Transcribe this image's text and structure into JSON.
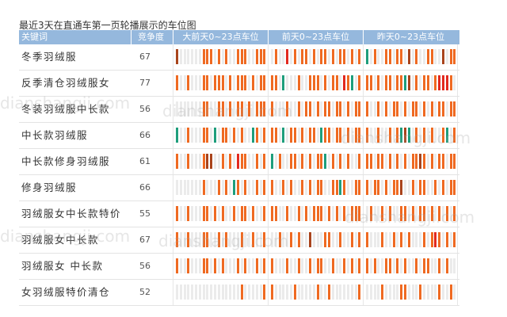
{
  "watermark": "dianshangji.com",
  "chart_data": {
    "type": "table",
    "title": "最近3天在直通车第一页轮播展示的车位图",
    "columns": [
      "关键词",
      "竞争度",
      "大前天0~23点车位",
      "前天0~23点车位",
      "昨天0~23点车位"
    ],
    "header_color": "#95b8dd",
    "slot_colors": {
      "orange": "#ef6a22",
      "green": "#1e9e7c",
      "red": "#e22a20",
      "brown": "#a9441c",
      "empty": "#ebebeb"
    },
    "rows": [
      {
        "keyword": "冬季羽绒服",
        "competition": 67,
        "days": [
          {
            "brown": [
              0
            ],
            "orange": [
              7,
              8,
              9,
              11,
              13,
              16,
              17,
              18,
              21,
              22,
              23
            ]
          },
          {
            "orange": [
              1,
              6,
              8,
              9,
              11,
              13,
              14,
              16,
              18,
              19,
              21,
              23
            ],
            "red": [
              4
            ]
          },
          {
            "green": [
              0
            ],
            "orange": [
              2,
              5,
              6,
              8,
              9,
              13,
              16,
              17,
              22,
              23
            ],
            "brown": [
              11,
              20
            ]
          }
        ]
      },
      {
        "keyword": "反季清仓羽绒服女",
        "competition": 77,
        "days": [
          {
            "orange": [
              0,
              3,
              7,
              8,
              10,
              11,
              12,
              14,
              16,
              17,
              18,
              20,
              22,
              23
            ]
          },
          {
            "orange": [
              0,
              1,
              7,
              10,
              11,
              12,
              14,
              16,
              17,
              20,
              23
            ],
            "green": [
              3,
              21
            ],
            "red": [
              19
            ]
          },
          {
            "orange": [
              0,
              1,
              3,
              5,
              6,
              8,
              9,
              13,
              15,
              16,
              18,
              22
            ],
            "green": [
              10
            ],
            "brown": [
              11
            ],
            "red": [
              19,
              20,
              21
            ]
          }
        ]
      },
      {
        "keyword": "冬装羽绒服中长款",
        "competition": 56,
        "days": [
          {
            "orange": [
              7,
              8,
              11,
              12,
              14,
              16,
              17,
              19,
              21,
              22,
              23
            ]
          },
          {
            "orange": [
              0,
              4,
              7,
              9,
              10,
              12,
              14,
              15,
              17,
              18,
              20,
              22,
              23
            ]
          },
          {
            "orange": [
              0,
              3,
              5,
              7,
              8,
              10,
              12,
              13,
              15,
              17,
              19,
              20,
              22,
              23
            ]
          }
        ]
      },
      {
        "keyword": "中长款羽绒服",
        "competition": 66,
        "days": [
          {
            "green": [
              0,
              10,
              20
            ],
            "orange": [
              3,
              7,
              8,
              12,
              13,
              15,
              17,
              21,
              23
            ]
          },
          {
            "green": [
              3,
              13
            ],
            "orange": [
              0,
              1,
              5,
              6,
              8,
              10,
              11,
              14,
              15,
              17,
              18,
              20,
              22,
              23
            ]
          },
          {
            "orange": [
              0,
              3,
              6,
              8,
              13,
              15,
              17,
              20,
              23
            ],
            "green": [
              9,
              11,
              21
            ],
            "brown": [
              10
            ]
          }
        ]
      },
      {
        "keyword": "中长款修身羽绒服",
        "competition": 61,
        "days": [
          {
            "orange": [
              0,
              3,
              7,
              12,
              14,
              17,
              18,
              21,
              23
            ],
            "brown": [
              8,
              9
            ],
            "red": [
              16
            ]
          },
          {
            "green": [
              0,
              14
            ],
            "orange": [
              2,
              5,
              6,
              8,
              10,
              12,
              13,
              16,
              18,
              20,
              23
            ]
          },
          {
            "orange": [
              0,
              1,
              3,
              4,
              6,
              8,
              10,
              12,
              13,
              15,
              17,
              19,
              20,
              22,
              23
            ],
            "brown": [
              14
            ]
          }
        ]
      },
      {
        "keyword": "修身羽绒服",
        "competition": 66,
        "days": [
          {
            "orange": [
              7,
              11,
              13,
              16,
              18,
              21,
              23
            ],
            "green": [
              15
            ]
          },
          {
            "orange": [
              0,
              3,
              5,
              8,
              10,
              12,
              13,
              16,
              17,
              19,
              22,
              23
            ],
            "green": [
              18
            ]
          },
          {
            "orange": [
              0,
              2,
              3,
              5,
              7,
              8,
              12,
              14,
              15,
              18,
              20,
              22,
              23
            ],
            "brown": [
              9
            ]
          }
        ]
      },
      {
        "keyword": "羽绒服女中长款特价",
        "competition": 55,
        "days": [
          {
            "orange": [
              0,
              3,
              7,
              8,
              10,
              12,
              15,
              17,
              18,
              20,
              23
            ]
          },
          {
            "orange": [
              0,
              1,
              4,
              7,
              9,
              11,
              12,
              13,
              15,
              17,
              19,
              21,
              22,
              23
            ]
          },
          {
            "orange": [
              1,
              4,
              6,
              9,
              10,
              12,
              14,
              15,
              17,
              19,
              21,
              23
            ]
          }
        ]
      },
      {
        "keyword": "羽绒服女中长款",
        "competition": 67,
        "days": [
          {
            "orange": [
              0,
              3,
              7,
              8,
              11,
              13,
              17,
              20,
              23
            ]
          },
          {
            "orange": [
              2,
              5,
              7,
              14,
              15,
              18,
              21,
              23
            ],
            "brown": [
              10
            ]
          },
          {
            "orange": [
              0,
              4,
              7,
              9,
              11,
              15,
              17,
              19,
              21,
              23
            ],
            "red": [
              18
            ]
          }
        ]
      },
      {
        "keyword": "羽绒服女 中长款",
        "competition": 56,
        "days": [
          {
            "orange": [
              0,
              3,
              7,
              8,
              10,
              12,
              16,
              18,
              21,
              23
            ]
          },
          {
            "orange": [
              0,
              4,
              7,
              10,
              12,
              13,
              16,
              19,
              21,
              23
            ]
          },
          {
            "orange": [
              0,
              2,
              5,
              6,
              8,
              10,
              13,
              15,
              16,
              19,
              21
            ]
          }
        ]
      },
      {
        "keyword": "女羽绒服特价清仓",
        "competition": 52,
        "days": [
          {
            "orange": [
              17,
              23
            ]
          },
          {
            "orange": [
              0,
              6,
              12,
              15,
              23
            ]
          },
          {
            "orange": [
              4,
              9,
              10,
              14,
              19,
              22
            ]
          }
        ]
      }
    ]
  }
}
